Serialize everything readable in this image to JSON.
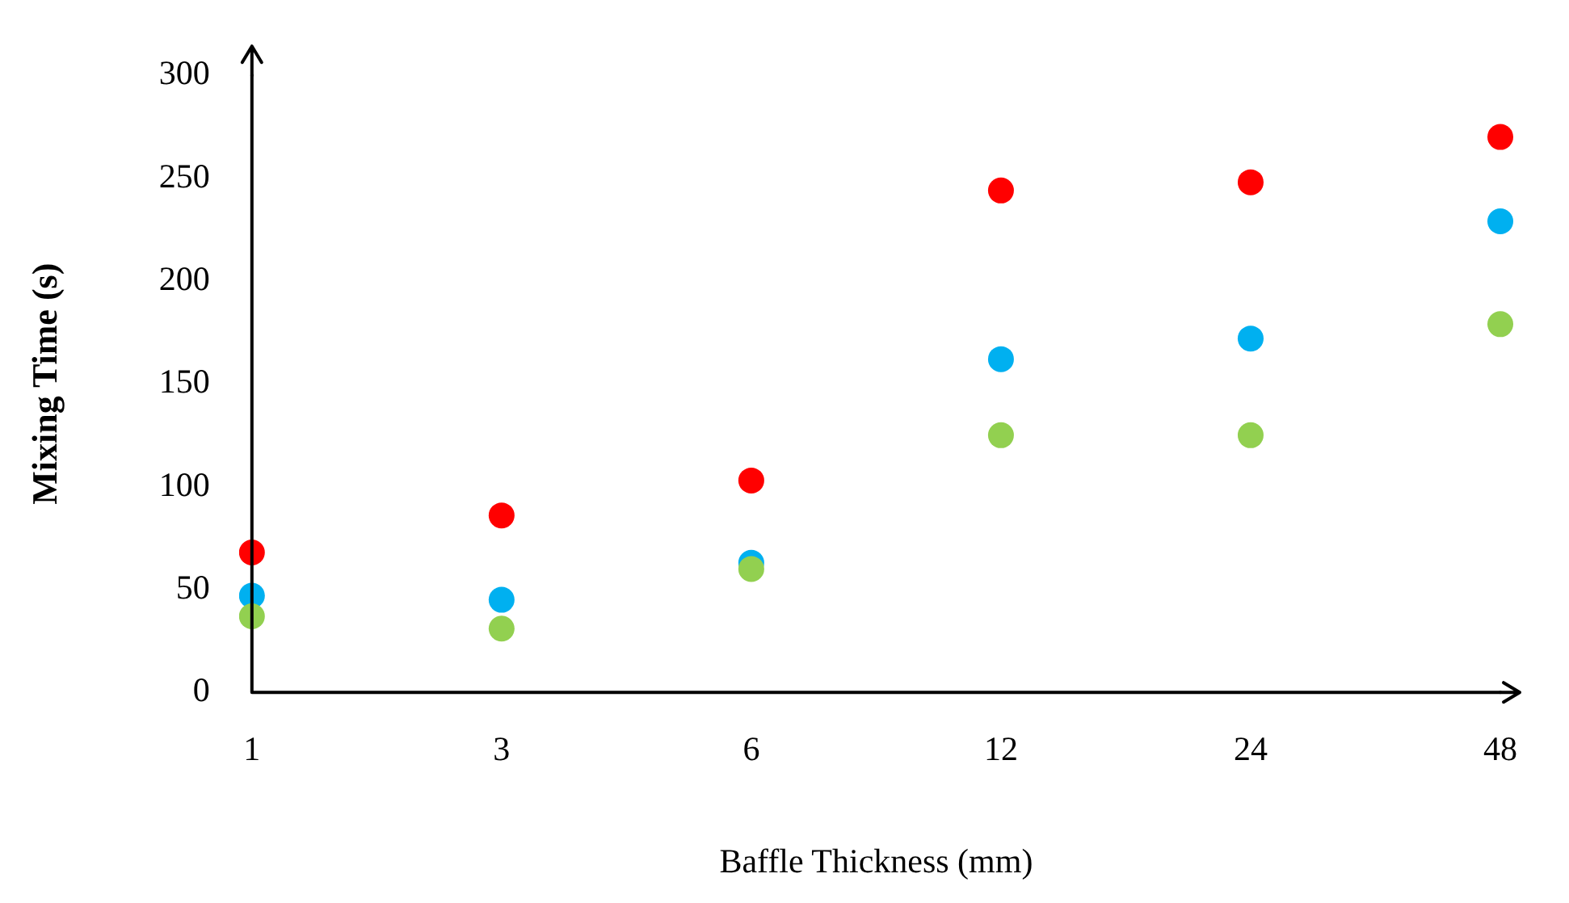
{
  "chart_data": {
    "type": "scatter",
    "xlabel": "Baffle Thickness (mm)",
    "ylabel": "Mixing Time (s)",
    "categories": [
      "1",
      "3",
      "6",
      "12",
      "24",
      "48"
    ],
    "series": [
      {
        "color": "#ff0000",
        "values": [
          68,
          86,
          103,
          244,
          248,
          270
        ]
      },
      {
        "color": "#00b0f0",
        "values": [
          47,
          45,
          63,
          162,
          172,
          229
        ]
      },
      {
        "color": "#92d050",
        "values": [
          37,
          31,
          60,
          125,
          125,
          179
        ]
      }
    ],
    "ylim": [
      0,
      300
    ],
    "yticks": [
      0,
      50,
      100,
      150,
      200,
      250,
      300
    ],
    "grid": false,
    "legend": false,
    "marker": "circle"
  }
}
